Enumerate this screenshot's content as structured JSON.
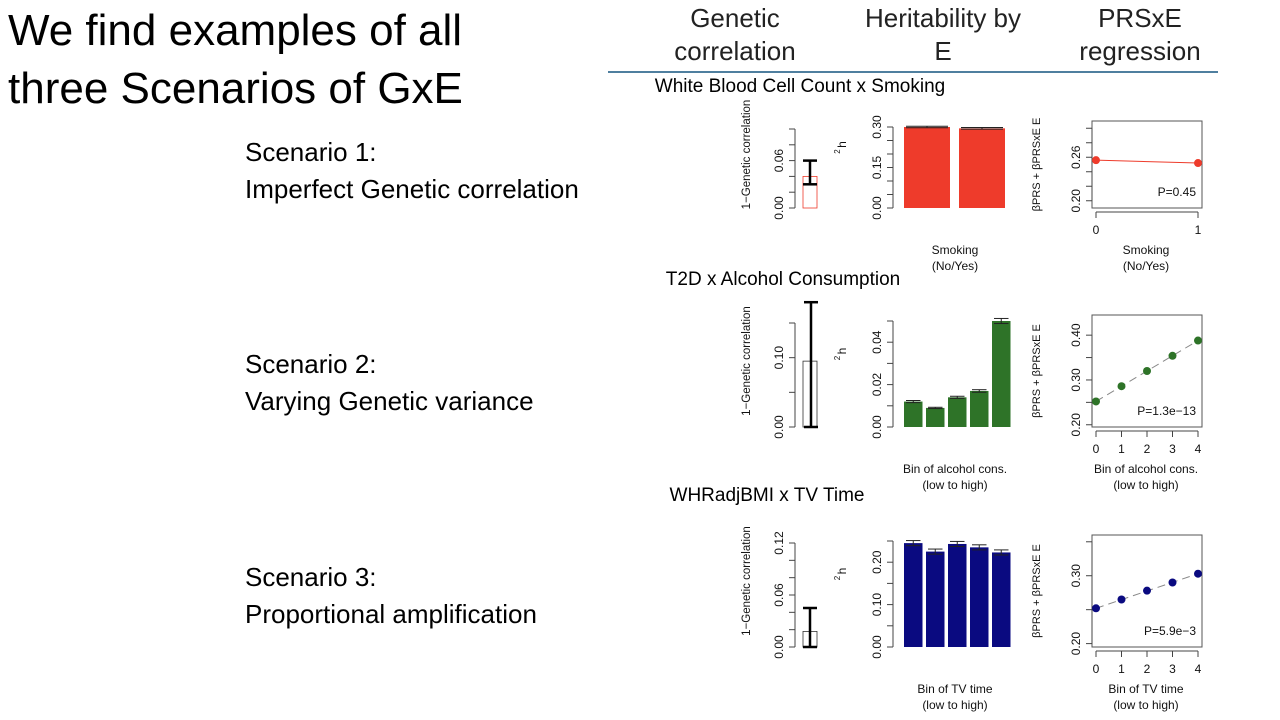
{
  "slide": {
    "title": "We find examples of all three Scenarios of GxE",
    "column_headers": [
      "Genetic correlation",
      "Heritability by E",
      "PRSxE regression"
    ],
    "scenarios": [
      {
        "label": "Scenario 1:",
        "description": "Imperfect Genetic correlation"
      },
      {
        "label": "Scenario 2:",
        "description": "Varying Genetic variance"
      },
      {
        "label": "Scenario 3:",
        "description": "Proportional amplification"
      }
    ]
  },
  "chart_data": [
    {
      "row_title": "White Blood Cell Count x Smoking",
      "color": "#ee3b2b",
      "genetic_correlation": {
        "type": "bar",
        "ylabel": "1−Genetic correlation",
        "ylim": [
          0,
          0.1
        ],
        "ticks": [
          0,
          0.02,
          0.04,
          0.06,
          0.08,
          0.1
        ],
        "tick_labels": [
          "0.00",
          "0.06"
        ],
        "value": 0.04,
        "error": [
          0.03,
          0.06
        ]
      },
      "heritability": {
        "type": "bar",
        "ylabel": "h²",
        "ylim": [
          0,
          0.3
        ],
        "ticks": [
          0,
          0.05,
          0.1,
          0.15,
          0.2,
          0.25,
          0.3
        ],
        "tick_labels": [
          "0.00",
          "0.15",
          "0.30"
        ],
        "values": [
          0.3,
          0.295
        ],
        "errors": [
          0.003,
          0.003
        ],
        "xlabel": [
          "Smoking",
          "(No/Yes)"
        ]
      },
      "prs_regression": {
        "type": "line",
        "ylabel": "βPRS + βPRSxE E",
        "ylim": [
          0.19,
          0.31
        ],
        "ticks": [
          0.2,
          0.22,
          0.24,
          0.26,
          0.28,
          0.3
        ],
        "tick_labels": [
          "0.20",
          "0.26"
        ],
        "x": [
          0,
          1
        ],
        "x_tick_labels": [
          "0",
          "1"
        ],
        "y": [
          0.256,
          0.252
        ],
        "p_value": "P=0.45",
        "line_style": "solid",
        "xlabel": [
          "Smoking",
          "(No/Yes)"
        ]
      }
    },
    {
      "row_title": "T2D x Alcohol Consumption",
      "color": "#2e7328",
      "genetic_correlation": {
        "type": "bar",
        "ylabel": "1−Genetic correlation",
        "ylim": [
          0,
          0.15
        ],
        "ticks": [
          0,
          0.05,
          0.1,
          0.15
        ],
        "tick_labels": [
          "0.00",
          "0.10"
        ],
        "value": 0.095,
        "error": [
          0.0,
          0.18
        ]
      },
      "heritability": {
        "type": "bar",
        "ylabel": "h²",
        "ylim": [
          0,
          0.05
        ],
        "ticks": [
          0,
          0.01,
          0.02,
          0.03,
          0.04,
          0.05
        ],
        "tick_labels": [
          "0.00",
          "0.02",
          "0.04"
        ],
        "values": [
          0.012,
          0.009,
          0.014,
          0.017,
          0.05
        ],
        "errors": [
          0.0005,
          0.0003,
          0.0005,
          0.0006,
          0.0012
        ],
        "xlabel": [
          "Bin of alcohol cons.",
          "(low to high)"
        ]
      },
      "prs_regression": {
        "type": "line",
        "ylabel": "βPRS + βPRSxE E",
        "ylim": [
          0.195,
          0.445
        ],
        "ticks": [
          0.2,
          0.25,
          0.3,
          0.35,
          0.4
        ],
        "tick_labels": [
          "0.20",
          "0.30",
          "0.40"
        ],
        "x": [
          0,
          1,
          2,
          3,
          4
        ],
        "x_tick_labels": [
          "0",
          "1",
          "2",
          "3",
          "4"
        ],
        "y": [
          0.252,
          0.286,
          0.32,
          0.354,
          0.388
        ],
        "p_value": "P=1.3e−13",
        "line_style": "dashed",
        "xlabel": [
          "Bin of alcohol cons.",
          "(low to high)"
        ]
      }
    },
    {
      "row_title": "WHRadjBMI x TV Time",
      "color": "#0a0a80",
      "genetic_correlation": {
        "type": "bar",
        "ylabel": "1−Genetic correlation",
        "ylim": [
          0,
          0.12
        ],
        "ticks": [
          0,
          0.02,
          0.04,
          0.06,
          0.08,
          0.1,
          0.12
        ],
        "tick_labels": [
          "0.00",
          "0.06",
          "0.12"
        ],
        "value": 0.018,
        "error": [
          0.0,
          0.045
        ]
      },
      "heritability": {
        "type": "bar",
        "ylabel": "h²",
        "ylim": [
          0,
          0.25
        ],
        "ticks": [
          0,
          0.05,
          0.1,
          0.15,
          0.2,
          0.25
        ],
        "tick_labels": [
          "0.00",
          "0.10",
          "0.20"
        ],
        "values": [
          0.245,
          0.225,
          0.243,
          0.235,
          0.223
        ],
        "errors": [
          0.006,
          0.006,
          0.006,
          0.006,
          0.006
        ],
        "xlabel": [
          "Bin of TV time",
          "(low to high)"
        ]
      },
      "prs_regression": {
        "type": "line",
        "ylabel": "βPRS + βPRSxE E",
        "ylim": [
          0.195,
          0.36
        ],
        "ticks": [
          0.2,
          0.25,
          0.3,
          0.35
        ],
        "tick_labels": [
          "0.20",
          "0.30"
        ],
        "x": [
          0,
          1,
          2,
          3,
          4
        ],
        "x_tick_labels": [
          "0",
          "1",
          "2",
          "3",
          "4"
        ],
        "y": [
          0.252,
          0.265,
          0.278,
          0.29,
          0.303
        ],
        "p_value": "P=5.9e−3",
        "line_style": "dashed",
        "xlabel": [
          "Bin of TV time",
          "(low to high)"
        ]
      }
    }
  ]
}
